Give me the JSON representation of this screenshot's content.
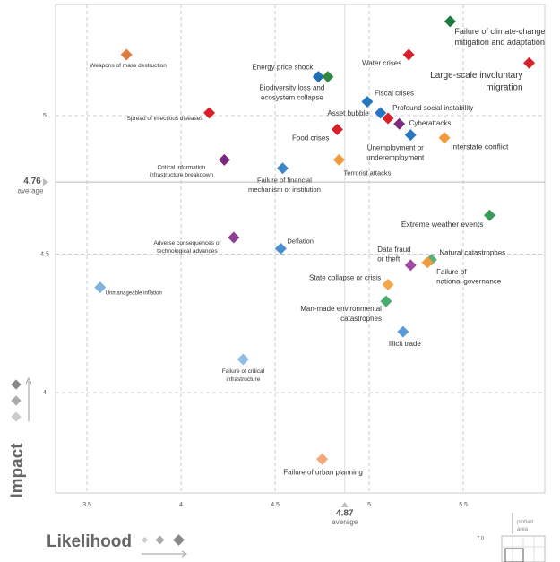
{
  "chart_data": {
    "type": "scatter",
    "x_axis_title": "Likelihood",
    "y_axis_title": "Impact",
    "xlim": [
      3.333,
      5.933
    ],
    "ylim": [
      3.638,
      5.401
    ],
    "xticks": [
      3.5,
      4.0,
      4.5,
      5.0,
      5.5
    ],
    "yticks": [
      4.0,
      4.5,
      5.0
    ],
    "x_average": 4.87,
    "y_average": 4.76,
    "average_label": "average",
    "inset": {
      "tick": "7.0",
      "label": "plotted area"
    },
    "x": [
      5.43,
      5.21,
      5.85,
      3.71,
      4.73,
      4.78,
      4.99,
      4.15,
      5.06,
      5.1,
      5.16,
      4.83,
      5.22,
      5.4,
      4.84,
      4.54,
      4.23,
      5.64,
      4.28,
      4.53,
      5.33,
      5.31,
      5.22,
      5.1,
      5.09,
      5.18,
      3.57,
      4.33,
      4.75
    ],
    "y": [
      5.34,
      5.22,
      5.19,
      5.22,
      5.14,
      5.14,
      5.05,
      5.01,
      5.01,
      4.99,
      4.97,
      4.95,
      4.93,
      4.92,
      4.84,
      4.81,
      4.84,
      4.64,
      4.56,
      4.52,
      4.48,
      4.47,
      4.46,
      4.39,
      4.33,
      4.22,
      4.38,
      4.12,
      3.76
    ],
    "labels": [
      [
        "Failure of climate-change",
        "mitigation and adaptation"
      ],
      [
        "Water crises"
      ],
      [
        "Large-scale involuntary",
        "migration"
      ],
      [
        "Weapons of mass destruction"
      ],
      [
        "Energy price shock"
      ],
      [
        "Biodiversity loss and",
        "ecosystem collapse"
      ],
      [
        "Fiscal crises"
      ],
      [
        "Spread of infectious diseases"
      ],
      [
        "Asset bubble"
      ],
      [
        "Profound social instability"
      ],
      [
        "Cyberattacks"
      ],
      [
        "Food crises"
      ],
      [
        "Unemployment or",
        "underemployment"
      ],
      [
        "Interstate conflict"
      ],
      [
        "Terrorist attacks"
      ],
      [
        "Failure of financial",
        "mechanism or institution"
      ],
      [
        "Critical information",
        "infrastructure breakdown"
      ],
      [
        "Extreme weather events"
      ],
      [
        "Adverse consequences of",
        "technological advances"
      ],
      [
        "Deflation"
      ],
      [
        "Natural catastrophes"
      ],
      [
        "Failure of",
        "national governance"
      ],
      [
        "Data fraud",
        "or theft"
      ],
      [
        "State collapse or crisis"
      ],
      [
        "Man-made environmental",
        "catastrophes"
      ],
      [
        "Illicit trade"
      ],
      [
        "Unmanageable inflation"
      ],
      [
        "Failure of critical",
        "infrastructure"
      ],
      [
        "Failure of urban planning"
      ]
    ],
    "colors": [
      "#1f7a3f",
      "#d7202a",
      "#d7202a",
      "#e07b3c",
      "#1f6fb5",
      "#2f8a3f",
      "#2677c0",
      "#d7202a",
      "#2677c0",
      "#d7202a",
      "#7b2a80",
      "#d7202a",
      "#2677c0",
      "#f29a3c",
      "#f29a3c",
      "#3b88c9",
      "#7b2a80",
      "#3a9a5a",
      "#8e3f92",
      "#4a90d0",
      "#5ab07a",
      "#f29a3c",
      "#a04aa5",
      "#f3a64a",
      "#4aab6e",
      "#5a9ad8",
      "#7fb3e0",
      "#8fbde5",
      "#f4a77a"
    ],
    "grid": true
  }
}
